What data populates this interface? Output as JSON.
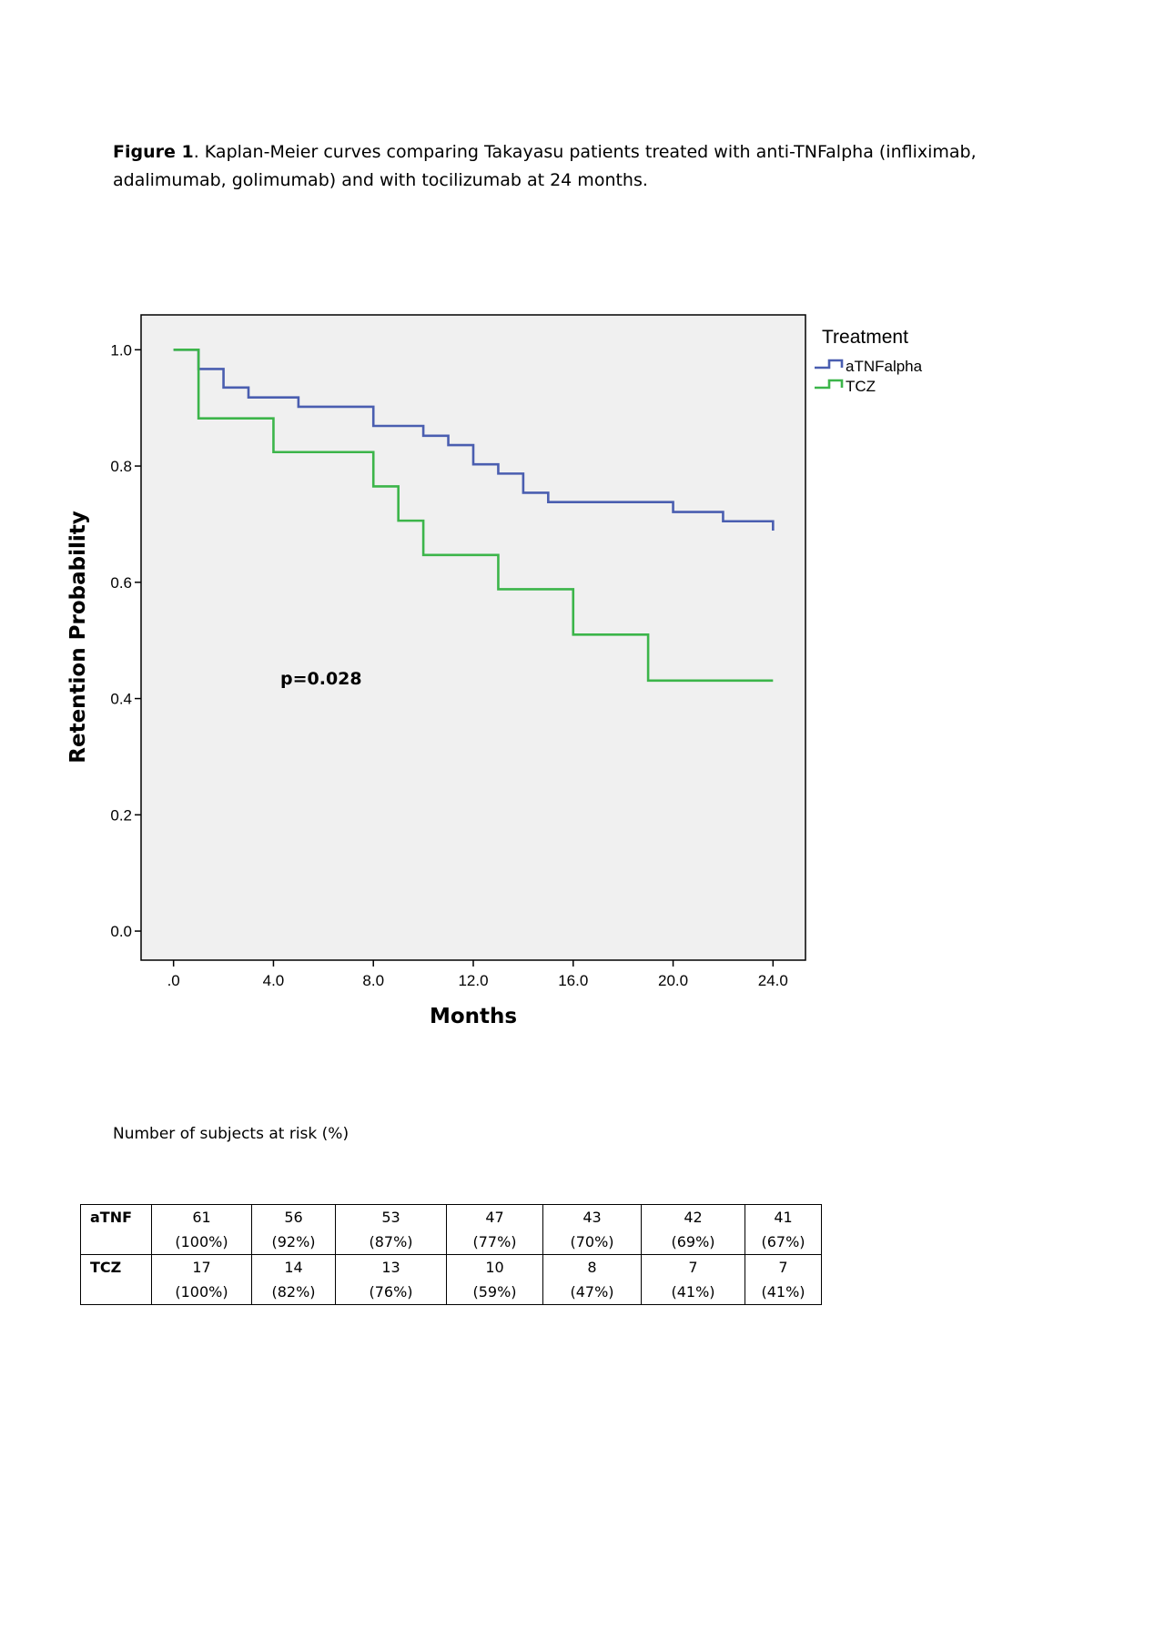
{
  "caption": {
    "label": "Figure 1",
    "text": ". Kaplan-Meier curves comparing Takayasu patients treated with anti-TNFalpha (infliximab, adalimumab, golimumab) and with tocilizumab at 24 months."
  },
  "chart_data": {
    "type": "line",
    "step": true,
    "title": "",
    "xlabel": "Months",
    "ylabel": "Retention Probability",
    "xlim": [
      -1.3,
      25.3
    ],
    "ylim": [
      -0.05,
      1.06
    ],
    "x_ticks": [
      0,
      4,
      8,
      12,
      16,
      20,
      24
    ],
    "x_tick_labels": [
      ".0",
      "4.0",
      "8.0",
      "12.0",
      "16.0",
      "20.0",
      "24.0"
    ],
    "y_ticks": [
      0.0,
      0.2,
      0.4,
      0.6,
      0.8,
      1.0
    ],
    "y_tick_labels": [
      "0.0",
      "0.2",
      "0.4",
      "0.6",
      "0.8",
      "1.0"
    ],
    "grid": false,
    "background": "#f0f0f0",
    "legend": {
      "title": "Treatment",
      "position": "outside-right-top"
    },
    "annotation": "p=0.028",
    "series": [
      {
        "name": "aTNFalpha",
        "color": "#4a5eb0",
        "x": [
          0,
          1,
          2,
          3,
          5,
          8,
          10,
          11,
          12,
          13,
          14,
          15,
          20,
          22,
          24
        ],
        "y": [
          1.0,
          0.967,
          0.935,
          0.918,
          0.902,
          0.869,
          0.852,
          0.836,
          0.803,
          0.787,
          0.754,
          0.738,
          0.721,
          0.705,
          0.689
        ]
      },
      {
        "name": "TCZ",
        "color": "#3cb54a",
        "x": [
          0,
          1,
          4,
          8,
          9,
          10,
          13,
          16,
          19,
          24
        ],
        "y": [
          1.0,
          0.882,
          0.824,
          0.765,
          0.706,
          0.647,
          0.588,
          0.51,
          0.431,
          0.431
        ]
      }
    ]
  },
  "risk_table": {
    "title": "Number of subjects at risk (%)",
    "rows": [
      {
        "label": "aTNF",
        "cells": [
          {
            "count": "61",
            "pct": "(100%)"
          },
          {
            "count": "56",
            "pct": "(92%)"
          },
          {
            "count": "53",
            "pct": "(87%)"
          },
          {
            "count": "47",
            "pct": "(77%)"
          },
          {
            "count": "43",
            "pct": "(70%)"
          },
          {
            "count": "42",
            "pct": "(69%)"
          },
          {
            "count": "41",
            "pct": "(67%)"
          }
        ]
      },
      {
        "label": "TCZ",
        "cells": [
          {
            "count": "17",
            "pct": "(100%)"
          },
          {
            "count": "14",
            "pct": "(82%)"
          },
          {
            "count": "13",
            "pct": "(76%)"
          },
          {
            "count": "10",
            "pct": "(59%)"
          },
          {
            "count": "8",
            "pct": "(47%)"
          },
          {
            "count": "7",
            "pct": "(41%)"
          },
          {
            "count": "7",
            "pct": "(41%)"
          }
        ]
      }
    ]
  }
}
